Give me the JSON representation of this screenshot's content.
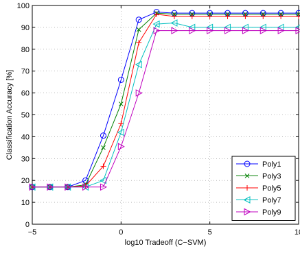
{
  "chart_data": {
    "type": "line",
    "xlabel": "log10 Tradeoff (C−SVM)",
    "ylabel": "Classification Accuracy [%]",
    "xlim": [
      -5,
      10
    ],
    "ylim": [
      0,
      100
    ],
    "xticks": [
      -5,
      0,
      5,
      10
    ],
    "xtick_labels": [
      "−5",
      "0",
      "5",
      "10"
    ],
    "yticks": [
      0,
      10,
      20,
      30,
      40,
      50,
      60,
      70,
      80,
      90,
      100
    ],
    "ytick_labels": [
      "0",
      "10",
      "20",
      "30",
      "40",
      "50",
      "60",
      "70",
      "80",
      "90",
      "100"
    ],
    "grid": true,
    "legend_position": "bottom-right",
    "x": [
      -5,
      -4,
      -3,
      -2,
      -1,
      0,
      1,
      2,
      3,
      4,
      5,
      6,
      7,
      8,
      9,
      10
    ],
    "series": [
      {
        "name": "Poly1",
        "color": "#0000ff",
        "marker": "circle",
        "values": [
          17,
          17,
          17,
          20,
          40.5,
          66,
          93.5,
          97,
          96.5,
          96.5,
          96.5,
          96.5,
          96.5,
          96.5,
          96.5,
          96.5
        ]
      },
      {
        "name": "Poly3",
        "color": "#007f00",
        "marker": "x",
        "values": [
          17,
          17,
          17,
          18,
          35,
          55,
          89,
          96.5,
          96,
          96,
          96,
          96,
          96,
          96,
          96,
          96
        ]
      },
      {
        "name": "Poly5",
        "color": "#ff0000",
        "marker": "plus",
        "values": [
          17,
          17,
          17,
          17.5,
          26.5,
          46,
          83,
          96,
          95,
          95,
          95,
          95,
          95,
          95,
          95,
          95
        ]
      },
      {
        "name": "Poly7",
        "color": "#00bfbf",
        "marker": "triangle-left",
        "values": [
          17,
          17,
          17,
          17,
          20,
          42,
          73,
          91.5,
          92,
          90,
          90,
          90,
          90,
          90,
          90,
          90
        ]
      },
      {
        "name": "Poly9",
        "color": "#bf00bf",
        "marker": "triangle-right",
        "values": [
          17,
          17,
          17,
          17,
          17,
          35.5,
          60,
          88.5,
          88.5,
          88.5,
          88.5,
          88.5,
          88.5,
          88.5,
          88.5,
          88.5
        ]
      }
    ]
  }
}
